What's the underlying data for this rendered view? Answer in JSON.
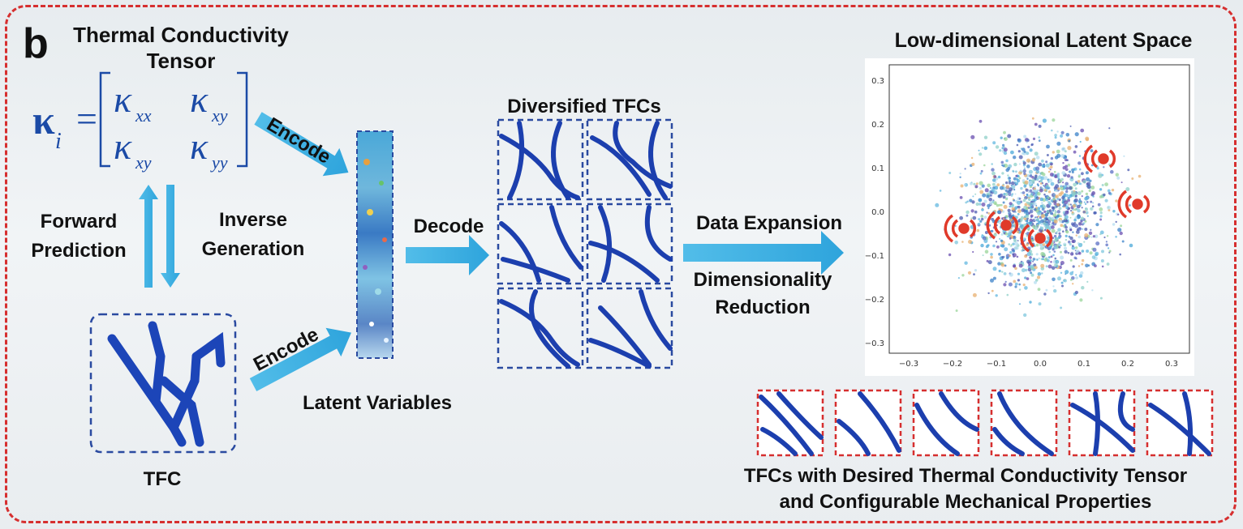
{
  "panel_label": "b",
  "tensor": {
    "title_line1": "Thermal Conductivity",
    "title_line2": "Tensor",
    "symbol": "κ",
    "subscript": "i",
    "equals": "=",
    "entries": [
      "κ",
      "κ",
      "κ",
      "κ"
    ],
    "entry_subscripts": [
      "xx",
      "xy",
      "xy",
      "yy"
    ]
  },
  "labels": {
    "forward_line1": "Forward",
    "forward_line2": "Prediction",
    "inverse_line1": "Inverse",
    "inverse_line2": "Generation",
    "encode_top": "Encode",
    "encode_bottom": "Encode",
    "latent_variables": "Latent Variables",
    "decode": "Decode",
    "diversified": "Diversified TFCs",
    "tfc": "TFC",
    "data_expansion": "Data Expansion",
    "dim_line1": "Dimensionality",
    "dim_line2": "Reduction",
    "latent_space_title": "Low-dimensional Latent Space",
    "desired_line1": "TFCs with Desired Thermal Conductivity Tensor",
    "desired_line2": "and Configurable Mechanical Properties"
  },
  "latent_plot": {
    "x_ticks": [
      "−0.3",
      "−0.2",
      "−0.1",
      "0.0",
      "0.1",
      "0.2",
      "0.3"
    ],
    "y_ticks": [
      "0.3",
      "0.2",
      "0.1",
      "0.0",
      "−0.1",
      "−0.2",
      "−0.3"
    ]
  },
  "colors": {
    "frame": "#d62f2f",
    "arrow": "#3fb0e2",
    "structure": "#1c3fae",
    "dashed_box": "#2a4aa0"
  }
}
